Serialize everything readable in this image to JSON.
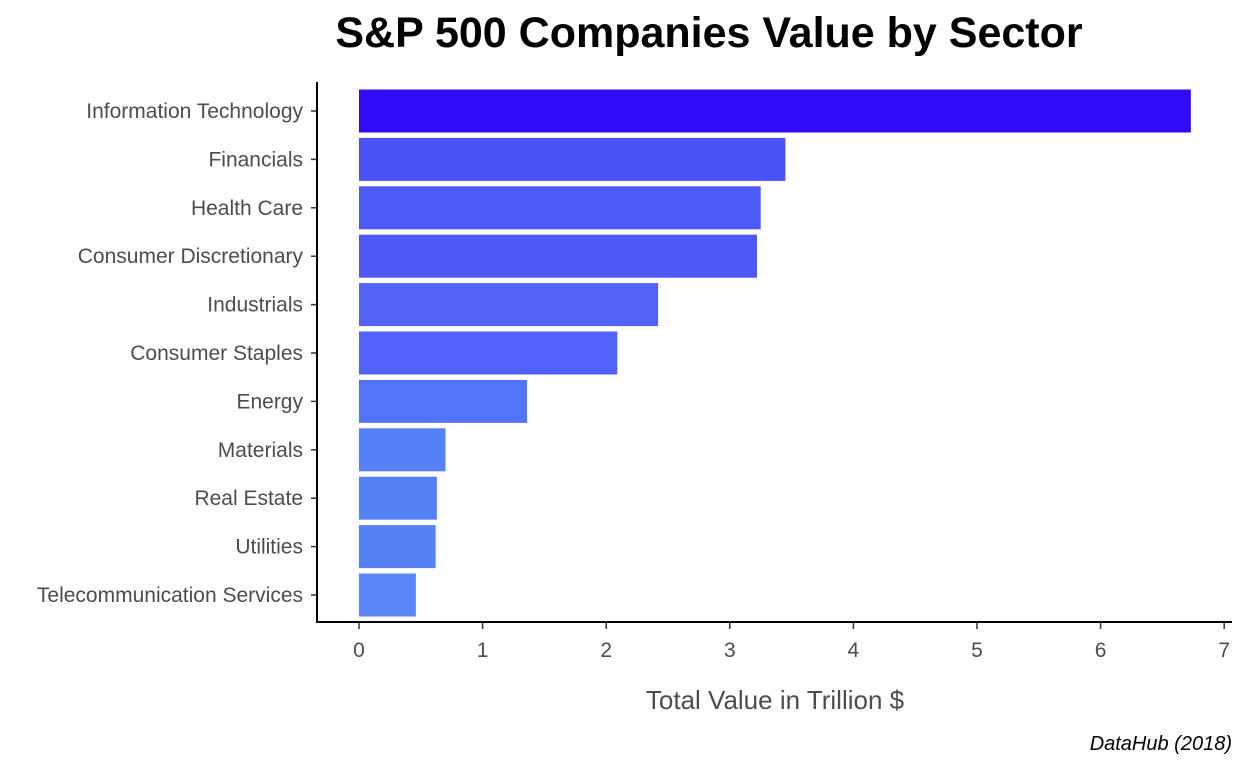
{
  "chart_data": {
    "type": "bar",
    "orientation": "horizontal",
    "title": "S&P 500 Companies Value by Sector",
    "xlabel": "Total Value in Trillion $",
    "ylabel": "",
    "caption": "DataHub (2018)",
    "categories": [
      "Information Technology",
      "Financials",
      "Health Care",
      "Consumer Discretionary",
      "Industrials",
      "Consumer Staples",
      "Energy",
      "Materials",
      "Real Estate",
      "Utilities",
      "Telecommunication Services"
    ],
    "values": [
      6.73,
      3.45,
      3.25,
      3.22,
      2.42,
      2.09,
      1.36,
      0.7,
      0.63,
      0.62,
      0.46
    ],
    "colors": [
      "#2f0cf7",
      "#4b52f7",
      "#4c5af7",
      "#4d58f7",
      "#5163f7",
      "#5062f7",
      "#5275f7",
      "#5580f7",
      "#5581f7",
      "#5581f7",
      "#5a86f9"
    ],
    "xlim": [
      0,
      7
    ],
    "xticks": [
      "0",
      "1",
      "2",
      "3",
      "4",
      "5",
      "6",
      "7"
    ],
    "grid": false,
    "legend": "none"
  }
}
